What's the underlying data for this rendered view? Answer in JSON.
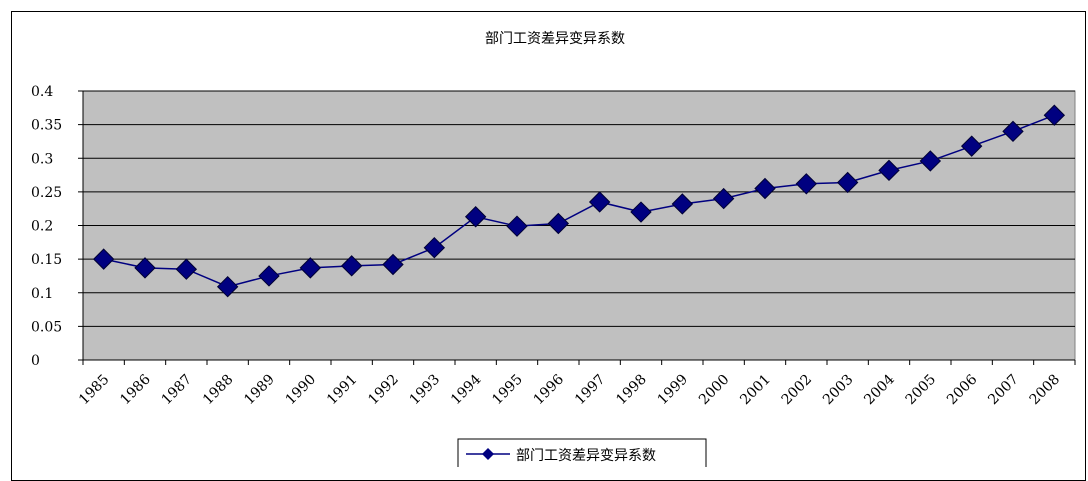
{
  "chart_data": {
    "type": "line",
    "title": "部门工资差异变异系数",
    "categories": [
      "1985",
      "1986",
      "1987",
      "1988",
      "1989",
      "1990",
      "1991",
      "1992",
      "1993",
      "1994",
      "1995",
      "1996",
      "1997",
      "1998",
      "1999",
      "2000",
      "2001",
      "2002",
      "2003",
      "2004",
      "2005",
      "2006",
      "2007",
      "2008"
    ],
    "series": [
      {
        "name": "部门工资差异变异系数",
        "values": [
          0.15,
          0.137,
          0.135,
          0.109,
          0.125,
          0.137,
          0.14,
          0.142,
          0.167,
          0.213,
          0.199,
          0.203,
          0.235,
          0.22,
          0.232,
          0.24,
          0.255,
          0.262,
          0.264,
          0.282,
          0.296,
          0.318,
          0.34,
          0.364
        ]
      }
    ],
    "ylim": [
      0,
      0.4
    ],
    "yticks": [
      "0",
      "0.05",
      "0.1",
      "0.15",
      "0.2",
      "0.25",
      "0.3",
      "0.35",
      "0.4"
    ],
    "grid": true,
    "legend_position": "bottom",
    "colors": {
      "plot_background": "#c0c0c0",
      "line": "#000080",
      "marker": "#000080"
    }
  }
}
